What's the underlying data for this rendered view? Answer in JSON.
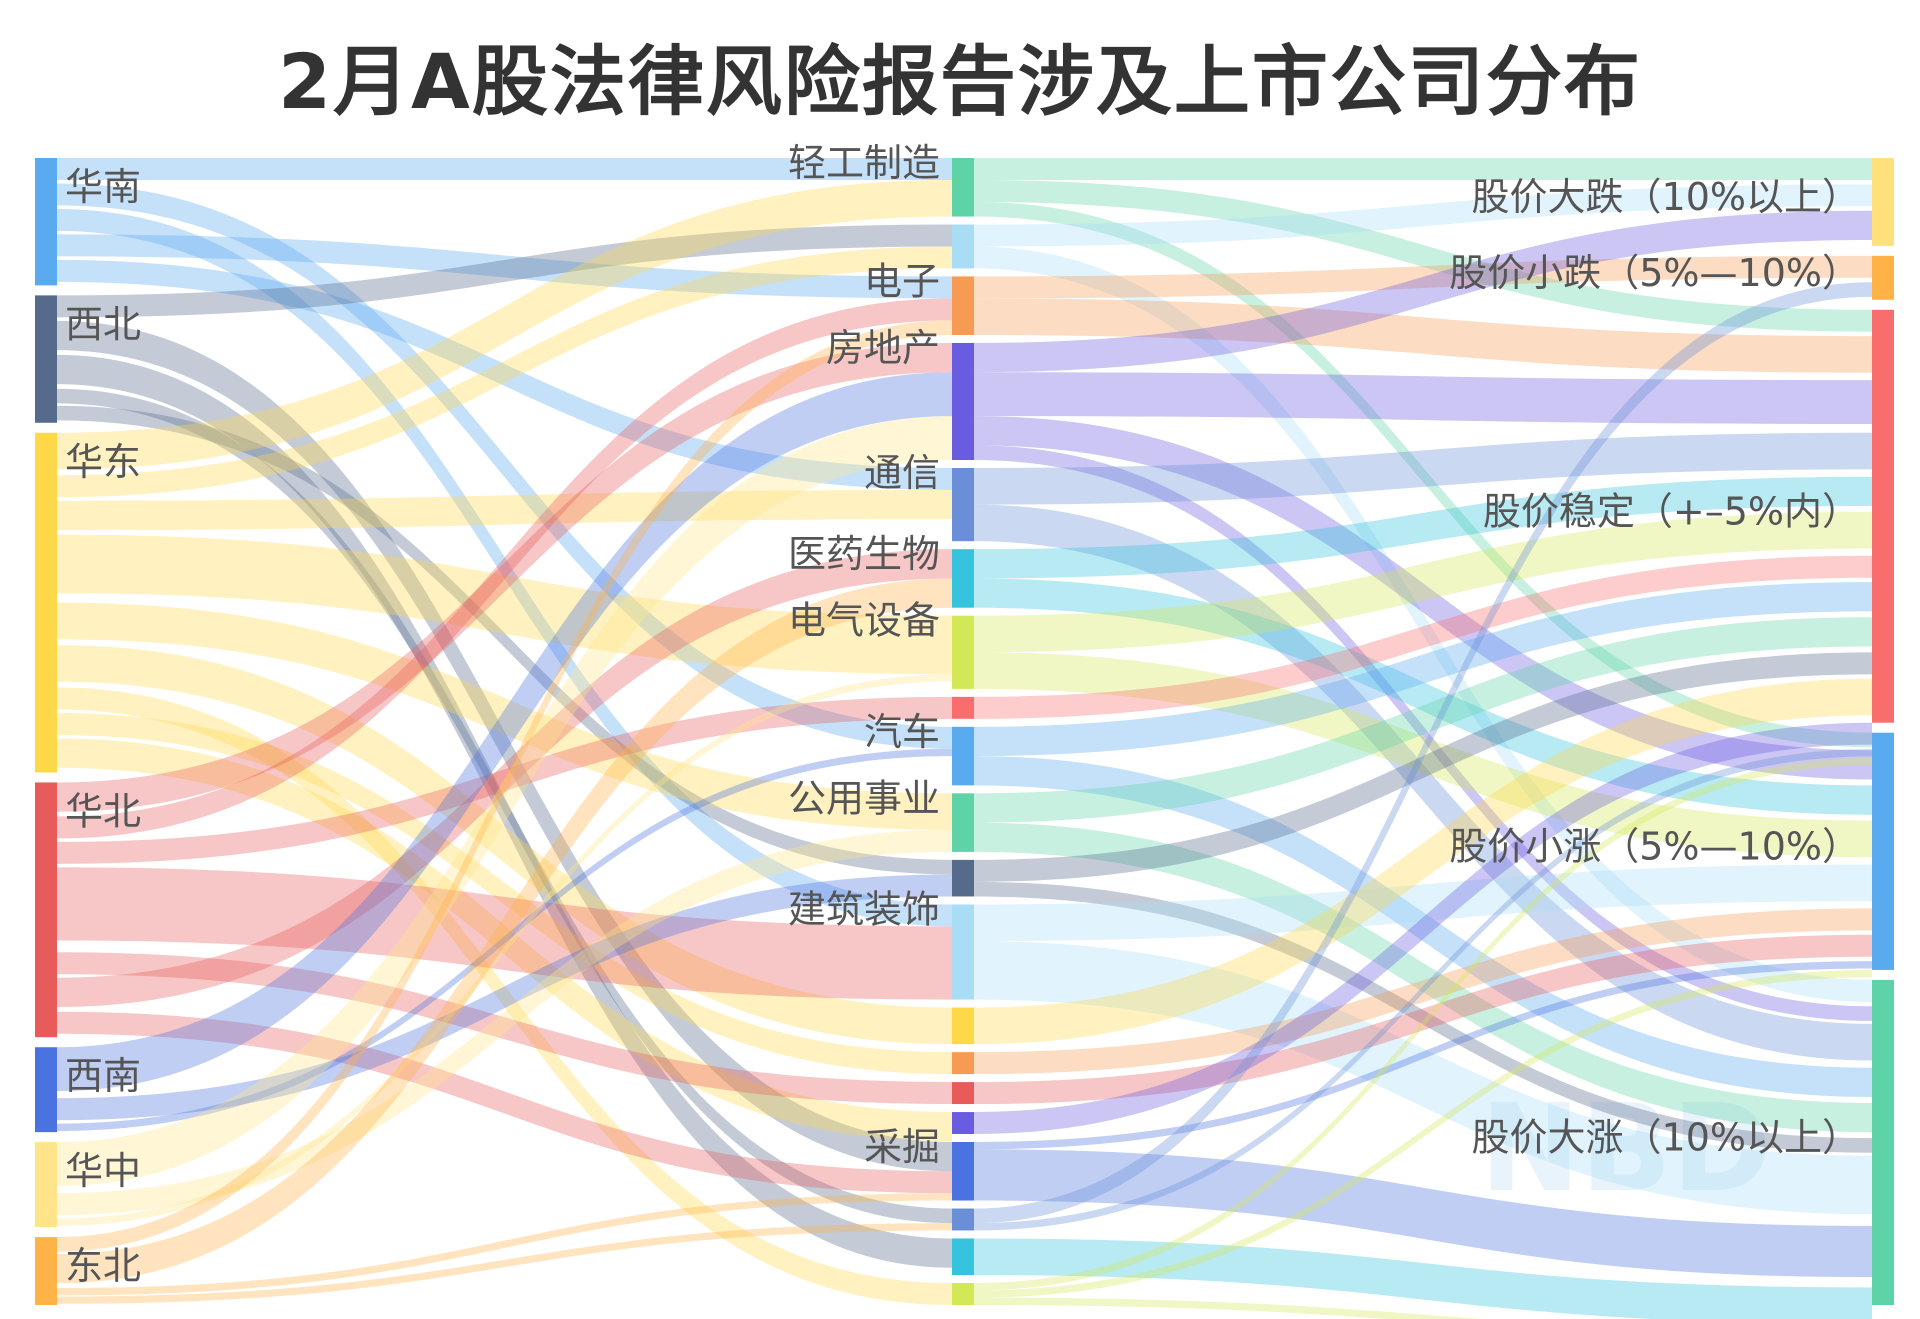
{
  "title": "2月A股法律风险报告涉及上市公司分布",
  "watermark": "NBD",
  "colors": {
    "华南": "#5aaaf0",
    "西北": "#566a8c",
    "华东": "#ffd84a",
    "华北": "#e85b5b",
    "西南": "#4a72e0",
    "华中": "#ffe48a",
    "东北": "#ffb347",
    "轻工制造": "#5fd3a8",
    "电子": "#f79a52",
    "房地产": "#6a5ce0",
    "通信": "#6a8fd8",
    "医药生物": "#35c3dd",
    "电气设备": "#d3e857",
    "汽车": "#5aaaf0",
    "公用事业": "#5fd3a8",
    "建筑装饰": "#a9dcf5",
    "采掘": "#4a72e0",
    "股价大跌（10%以上）": "#ffe07a",
    "股价小跌（5%—10%）": "#ffb347",
    "股价稳定（+–5%内）": "#f96d6d",
    "股价小涨（5%—10%）": "#5aaaf0",
    "股价大涨（10%以上）": "#5fd3a8"
  },
  "nodes": {
    "regions": [
      "华南",
      "西北",
      "华东",
      "华北",
      "西南",
      "华中",
      "东北"
    ],
    "industries": [
      "轻工制造",
      "",
      "电子",
      "房地产",
      "通信",
      "医药生物",
      "电气设备",
      "",
      "汽车",
      "公用事业",
      "",
      "建筑装饰",
      "",
      "",
      "",
      "",
      "采掘",
      "",
      "",
      ""
    ],
    "industry_colors": [
      "#5fd3a8",
      "#a9dcf5",
      "#f79a52",
      "#6a5ce0",
      "#6a8fd8",
      "#35c3dd",
      "#d3e857",
      "#f96d6d",
      "#5aaaf0",
      "#5fd3a8",
      "#566a8c",
      "#a9dcf5",
      "#ffd84a",
      "#f79a52",
      "#e85b5b",
      "#6a5ce0",
      "#4a72e0",
      "#6a8fd8",
      "#35c3dd",
      "#d3e857"
    ],
    "outcomes": [
      "股价大跌（10%以上）",
      "股价小跌（5%—10%）",
      "股价稳定（+–5%内）",
      "股价小涨（5%—10%）",
      "股价大涨（10%以上）"
    ]
  },
  "diagram_data": {
    "region_values": [
      15,
      15,
      40,
      30,
      10,
      10,
      8
    ],
    "industry_values": [
      8,
      6,
      8,
      16,
      10,
      8,
      10,
      3,
      8,
      8,
      5,
      13,
      5,
      3,
      3,
      3,
      8,
      3,
      5,
      3
    ],
    "outcome_values": [
      10,
      5,
      47,
      27,
      37
    ],
    "region_to_industry": [
      [
        "华南",
        0,
        3
      ],
      [
        "华南",
        8,
        3
      ],
      [
        "华南",
        11,
        3
      ],
      [
        "华南",
        2,
        3
      ],
      [
        "华南",
        4,
        3
      ],
      [
        "西北",
        1,
        3
      ],
      [
        "西北",
        16,
        4
      ],
      [
        "西北",
        18,
        4
      ],
      [
        "西北",
        17,
        2
      ],
      [
        "西北",
        10,
        2
      ],
      [
        "华东",
        0,
        5
      ],
      [
        "华东",
        1,
        3
      ],
      [
        "华东",
        4,
        4
      ],
      [
        "华东",
        6,
        8
      ],
      [
        "华东",
        9,
        5
      ],
      [
        "华东",
        12,
        5
      ],
      [
        "华东",
        19,
        3
      ],
      [
        "华东",
        13,
        3
      ],
      [
        "华东",
        15,
        4
      ],
      [
        "华北",
        3,
        4
      ],
      [
        "华北",
        2,
        3
      ],
      [
        "华北",
        7,
        3
      ],
      [
        "华北",
        11,
        10
      ],
      [
        "华北",
        14,
        3
      ],
      [
        "华北",
        5,
        4
      ],
      [
        "华北",
        16,
        3
      ],
      [
        "西南",
        3,
        6
      ],
      [
        "西南",
        10,
        3
      ],
      [
        "西南",
        8,
        1
      ],
      [
        "华中",
        3,
        6
      ],
      [
        "华中",
        9,
        3
      ],
      [
        "华中",
        6,
        1
      ],
      [
        "东北",
        2,
        2
      ],
      [
        "东北",
        5,
        4
      ],
      [
        "东北",
        16,
        1
      ],
      [
        "东北",
        17,
        1
      ]
    ],
    "industry_to_outcome": [
      [
        0,
        0,
        3
      ],
      [
        0,
        2,
        3
      ],
      [
        0,
        3,
        2
      ],
      [
        1,
        0,
        3
      ],
      [
        1,
        4,
        3
      ],
      [
        2,
        1,
        3
      ],
      [
        2,
        2,
        5
      ],
      [
        3,
        0,
        4
      ],
      [
        3,
        2,
        6
      ],
      [
        3,
        3,
        4
      ],
      [
        3,
        4,
        2
      ],
      [
        4,
        2,
        5
      ],
      [
        4,
        4,
        5
      ],
      [
        5,
        2,
        4
      ],
      [
        5,
        3,
        4
      ],
      [
        6,
        2,
        5
      ],
      [
        6,
        3,
        5
      ],
      [
        7,
        2,
        3
      ],
      [
        8,
        2,
        4
      ],
      [
        8,
        4,
        4
      ],
      [
        9,
        2,
        4
      ],
      [
        9,
        4,
        4
      ],
      [
        10,
        2,
        3
      ],
      [
        10,
        4,
        2
      ],
      [
        11,
        3,
        5
      ],
      [
        11,
        4,
        8
      ],
      [
        12,
        2,
        5
      ],
      [
        13,
        3,
        3
      ],
      [
        14,
        3,
        3
      ],
      [
        15,
        2,
        3
      ],
      [
        16,
        3,
        1
      ],
      [
        16,
        4,
        7
      ],
      [
        17,
        1,
        2
      ],
      [
        17,
        2,
        1
      ],
      [
        18,
        4,
        5
      ],
      [
        19,
        2,
        1
      ],
      [
        19,
        3,
        1
      ],
      [
        19,
        4,
        1
      ]
    ]
  }
}
